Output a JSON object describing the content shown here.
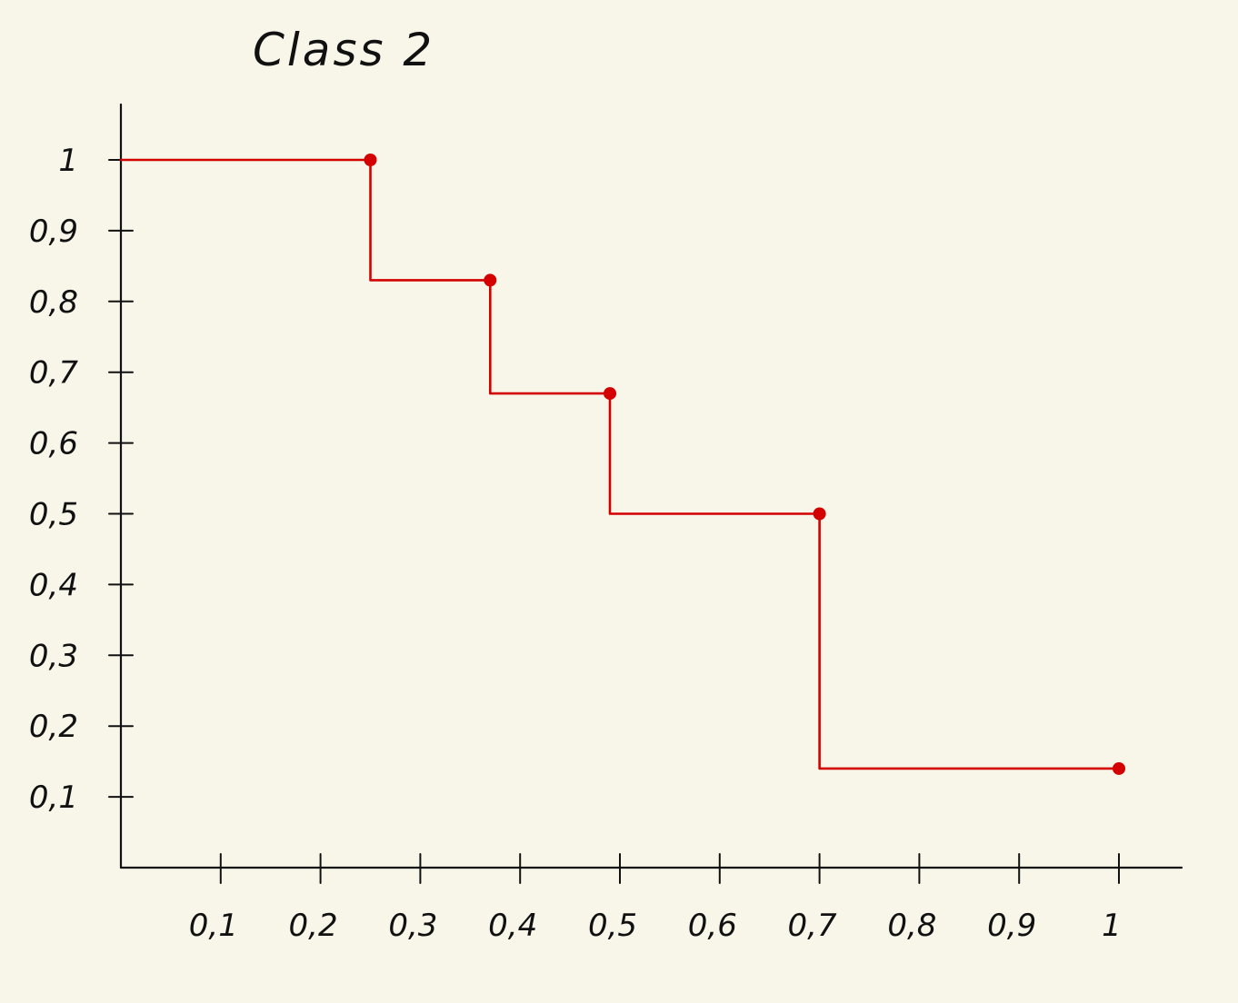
{
  "chart_data": {
    "type": "line",
    "title": "Class 2",
    "xlabel": "",
    "ylabel": "",
    "xlim": [
      0,
      1.05
    ],
    "ylim": [
      0,
      1.03
    ],
    "x_tick_labels": [
      "0,1",
      "0,2",
      "0,3",
      "0,4",
      "0,5",
      "0,6",
      "0,7",
      "0,8",
      "0,9",
      "1"
    ],
    "y_tick_labels": [
      "1",
      "0,9",
      "0,8",
      "0,7",
      "0,6",
      "0,5",
      "0,4",
      "0,3",
      "0,2",
      "0,1"
    ],
    "grid": false,
    "line_color": "#d40000",
    "axis_color": "#111111",
    "background": "#f8f5e9",
    "series": [
      {
        "step": "horizontal-then-vertical",
        "points": [
          {
            "x": 0.0,
            "y": 1.0
          },
          {
            "x": 0.25,
            "y": 1.0
          },
          {
            "x": 0.25,
            "y": 0.83
          },
          {
            "x": 0.37,
            "y": 0.83
          },
          {
            "x": 0.37,
            "y": 0.67
          },
          {
            "x": 0.49,
            "y": 0.67
          },
          {
            "x": 0.49,
            "y": 0.5
          },
          {
            "x": 0.7,
            "y": 0.5
          },
          {
            "x": 0.7,
            "y": 0.14
          },
          {
            "x": 1.0,
            "y": 0.14
          }
        ],
        "markers": [
          {
            "x": 0.25,
            "y": 1.0
          },
          {
            "x": 0.37,
            "y": 0.83
          },
          {
            "x": 0.49,
            "y": 0.67
          },
          {
            "x": 0.7,
            "y": 0.5
          },
          {
            "x": 1.0,
            "y": 0.14
          }
        ]
      }
    ]
  }
}
